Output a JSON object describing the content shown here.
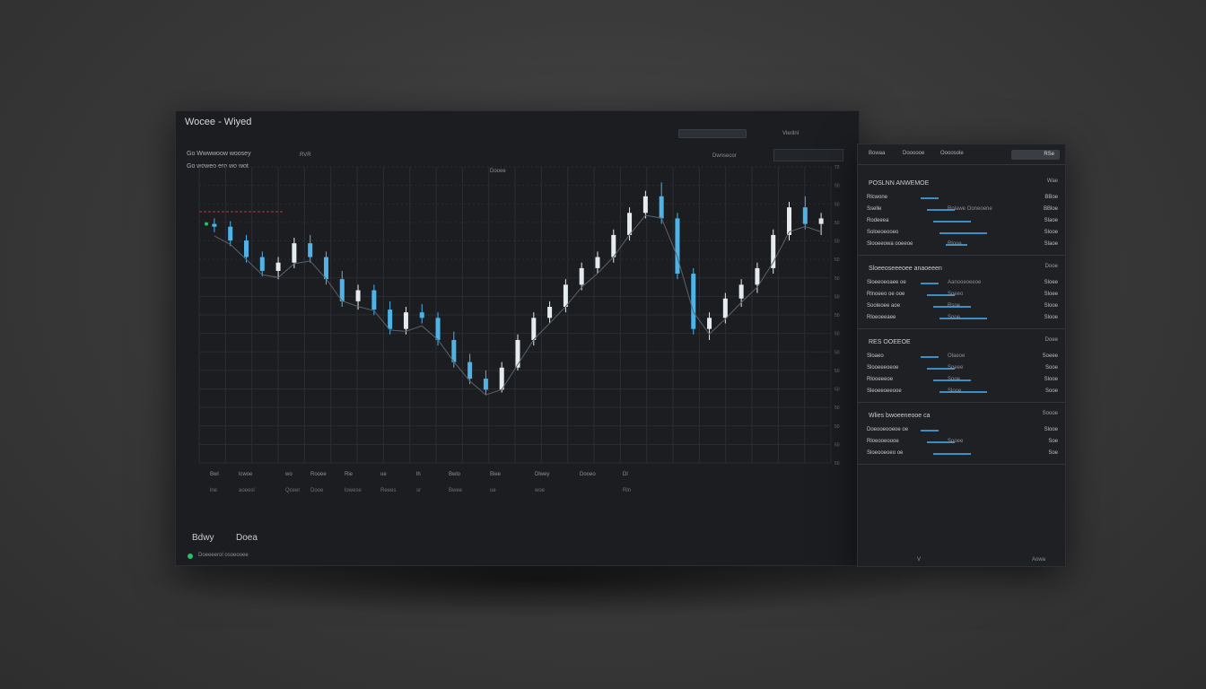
{
  "window": {
    "title": "Wocee - Wiyed"
  },
  "toolbar": {
    "search_placeholder": "",
    "mode_label": "Dwnsecor",
    "range_label": "Vlerilnl"
  },
  "chart": {
    "legend_title": "Go Wwwwoow woosey",
    "legend_sub": "Go woweo ero wo wot",
    "series_label": "RVR",
    "mid_label": "Dooee",
    "y_ticks": [
      "72",
      "50",
      "50",
      "50",
      "50",
      "50",
      "50",
      "50",
      "50",
      "50",
      "50",
      "50",
      "50",
      "50",
      "50",
      "50",
      "50"
    ]
  },
  "chart_data": {
    "type": "bar",
    "note_series": "candles",
    "title": "",
    "xlabel": "",
    "ylabel": "",
    "candles": [
      [
        0.8,
        0.82,
        0.77,
        0.79
      ],
      [
        0.79,
        0.81,
        0.72,
        0.74
      ],
      [
        0.74,
        0.76,
        0.66,
        0.68
      ],
      [
        0.68,
        0.7,
        0.61,
        0.63
      ],
      [
        0.63,
        0.68,
        0.6,
        0.66
      ],
      [
        0.66,
        0.75,
        0.64,
        0.73
      ],
      [
        0.73,
        0.76,
        0.66,
        0.68
      ],
      [
        0.68,
        0.7,
        0.58,
        0.6
      ],
      [
        0.6,
        0.63,
        0.5,
        0.52
      ],
      [
        0.52,
        0.58,
        0.49,
        0.56
      ],
      [
        0.56,
        0.58,
        0.47,
        0.49
      ],
      [
        0.49,
        0.52,
        0.4,
        0.42
      ],
      [
        0.42,
        0.5,
        0.4,
        0.48
      ],
      [
        0.48,
        0.51,
        0.44,
        0.46
      ],
      [
        0.46,
        0.48,
        0.36,
        0.38
      ],
      [
        0.38,
        0.41,
        0.28,
        0.3
      ],
      [
        0.3,
        0.33,
        0.22,
        0.24
      ],
      [
        0.24,
        0.27,
        0.18,
        0.2
      ],
      [
        0.2,
        0.3,
        0.19,
        0.28
      ],
      [
        0.28,
        0.4,
        0.27,
        0.38
      ],
      [
        0.38,
        0.48,
        0.36,
        0.46
      ],
      [
        0.46,
        0.52,
        0.44,
        0.5
      ],
      [
        0.5,
        0.6,
        0.48,
        0.58
      ],
      [
        0.58,
        0.66,
        0.56,
        0.64
      ],
      [
        0.64,
        0.7,
        0.62,
        0.68
      ],
      [
        0.68,
        0.78,
        0.66,
        0.76
      ],
      [
        0.76,
        0.86,
        0.74,
        0.84
      ],
      [
        0.84,
        0.92,
        0.82,
        0.9
      ],
      [
        0.9,
        0.95,
        0.8,
        0.82
      ],
      [
        0.82,
        0.84,
        0.6,
        0.62
      ],
      [
        0.62,
        0.64,
        0.4,
        0.42
      ],
      [
        0.42,
        0.48,
        0.38,
        0.46
      ],
      [
        0.46,
        0.55,
        0.44,
        0.53
      ],
      [
        0.53,
        0.6,
        0.5,
        0.58
      ],
      [
        0.58,
        0.66,
        0.55,
        0.64
      ],
      [
        0.64,
        0.78,
        0.62,
        0.76
      ],
      [
        0.76,
        0.88,
        0.74,
        0.86
      ],
      [
        0.86,
        0.9,
        0.78,
        0.8
      ],
      [
        0.8,
        0.84,
        0.76,
        0.82
      ]
    ]
  },
  "stats": [
    {
      "label": "Bwl",
      "value": "lne"
    },
    {
      "label": "lcwoe",
      "value": "aoeesl"
    },
    {
      "label": "wo",
      "value": "Qceer"
    },
    {
      "label": "Rooee",
      "value": "Dooe"
    },
    {
      "label": "Rie",
      "value": "lowese"
    },
    {
      "label": "ue",
      "value": "Reees"
    },
    {
      "label": "lh",
      "value": "sr"
    },
    {
      "label": "Bwlo",
      "value": "Bwee"
    },
    {
      "label": "Biee",
      "value": "ue"
    },
    {
      "label": "Dlwey",
      "value": "woe"
    },
    {
      "label": "Dooeo",
      "value": ""
    },
    {
      "label": "Dl",
      "value": "Rln"
    }
  ],
  "footer": {
    "tab1": "Bdwy",
    "tab2": "Doea",
    "status": "Doeeeerol osoeooee"
  },
  "side": {
    "tabs": [
      "Bowaa",
      "Doooooe",
      "Oooosole"
    ],
    "input_value": "RSe",
    "sections": [
      {
        "title": "POSLNN ANWEMOE",
        "value": "Wae",
        "rows": [
          {
            "l": "Rlcwone",
            "m": "",
            "r": "BBoe"
          },
          {
            "l": "Sselle",
            "m": "Rolawe Ooneoene",
            "r": "BBloe"
          },
          {
            "l": "Rodeeea",
            "m": "",
            "r": "Slaoe"
          },
          {
            "l": "Soloeoeooeo",
            "m": "",
            "r": "Slooe"
          },
          {
            "l": "Slooeeowa ooeeoe",
            "m": "Rlooe",
            "r": "Slaoe"
          }
        ]
      },
      {
        "title": "Sloeeoseeeoee anaoeeen",
        "value": "Dooe",
        "rows": [
          {
            "l": "Sloeeoeoaee oe",
            "m": "Aanooeoeeoe",
            "r": "Sloee"
          },
          {
            "l": "Rlnoeeo oe ooe",
            "m": "Soeeo",
            "r": "Sloee"
          },
          {
            "l": "Sooleoee aoe",
            "m": "Rsoe",
            "r": "Slooe"
          },
          {
            "l": "Rloeoeeaee",
            "m": "Sooe",
            "r": "Slooe"
          }
        ]
      },
      {
        "title": "RES OOEEOE",
        "value": "Doee",
        "rows": [
          {
            "l": "Sloaeo",
            "m": "Olaeoe",
            "r": "Soeee"
          },
          {
            "l": "Slooeeeoeoe",
            "m": "Soeee",
            "r": "Sooe"
          },
          {
            "l": "Rlooeeeoe",
            "m": "Sooe",
            "r": "Slooe"
          },
          {
            "l": "Sleoeeoeeooe",
            "m": "Slooe",
            "r": "Sooe"
          }
        ]
      },
      {
        "title": "Wlies bwoeeneooe ca",
        "value": "Soooe",
        "rows": [
          {
            "l": "Doeooeooeoe oe",
            "m": "",
            "r": "Slooe"
          },
          {
            "l": "Rloeooeoooe",
            "m": "Sooee",
            "r": "Soe"
          },
          {
            "l": "Sloeooeoeo oe",
            "m": "",
            "r": "Soe"
          }
        ]
      }
    ],
    "footer_left": "V",
    "footer_right": "Aowa"
  },
  "colors": {
    "up": "#e6ebf0",
    "down": "#4fb3e8",
    "accent": "#27c16a"
  }
}
